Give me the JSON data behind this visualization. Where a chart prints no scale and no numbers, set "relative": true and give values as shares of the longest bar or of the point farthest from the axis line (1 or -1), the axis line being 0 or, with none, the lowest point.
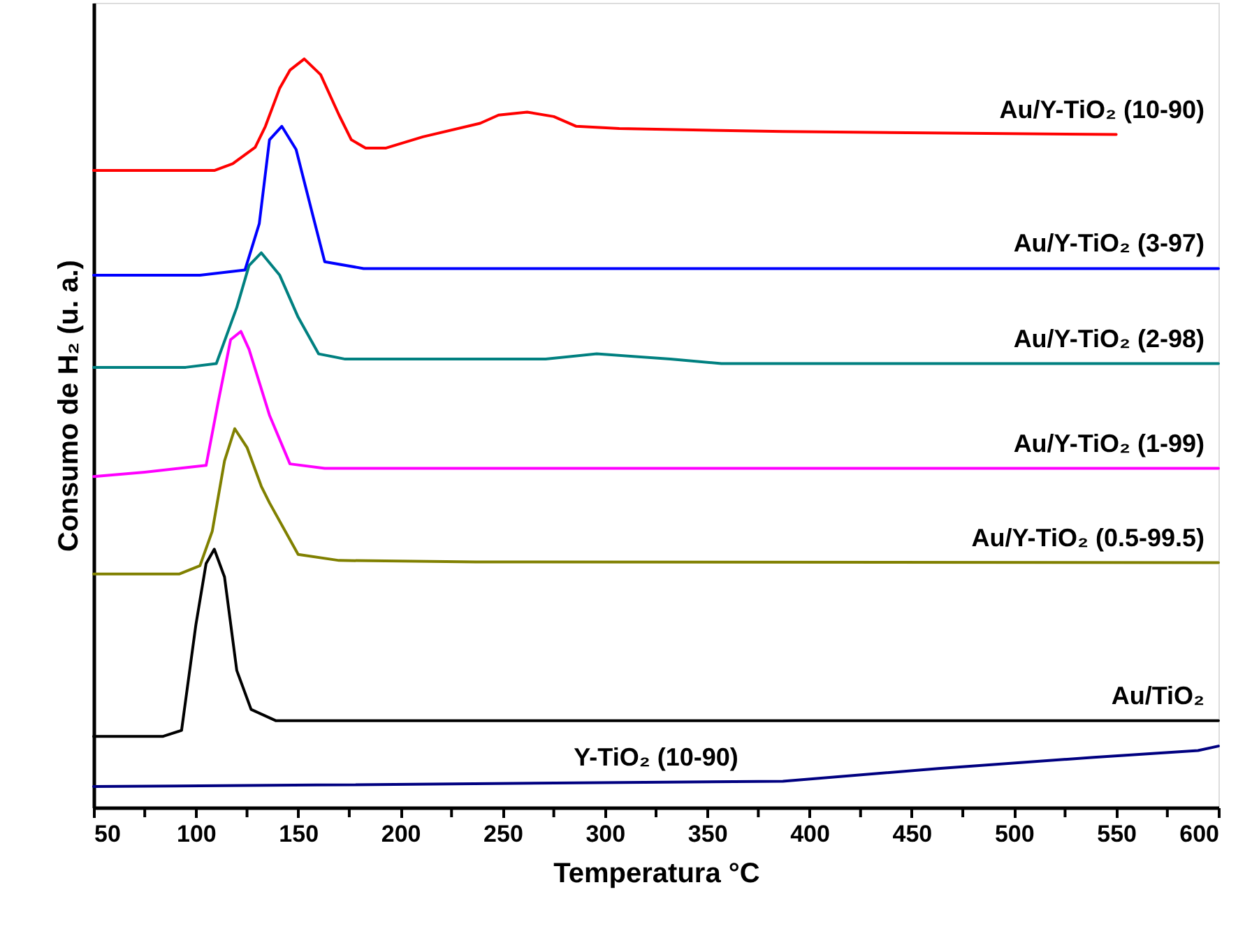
{
  "chart_data": {
    "type": "line",
    "relative": true,
    "xlabel": "Temperatura °C",
    "ylabel": "Consumo de H₂ (u. a.)",
    "xlim": [
      50,
      600
    ],
    "xticks": [
      50,
      {
        "value": 75,
        "label": null
      },
      100,
      {
        "value": 125,
        "label": null
      },
      150,
      {
        "value": 175,
        "label": null
      },
      200,
      {
        "value": 225,
        "label": null
      },
      250,
      {
        "value": 275,
        "label": null
      },
      300,
      {
        "value": 325,
        "label": null
      },
      350,
      {
        "value": 375,
        "label": null
      },
      400,
      {
        "value": 425,
        "label": null
      },
      450,
      {
        "value": 475,
        "label": null
      },
      500,
      {
        "value": 525,
        "label": null
      },
      550,
      {
        "value": 575,
        "label": null
      },
      600
    ],
    "tick_labels": "x",
    "grid": false,
    "legend": false,
    "series": [
      {
        "name": "Au/Y-TiO₂ (10-90)",
        "color": "#ff0000",
        "x": [
          50,
          109,
          118,
          129,
          134,
          141,
          146,
          153,
          161,
          170,
          176,
          183,
          193,
          211,
          239,
          248,
          262,
          275,
          286,
          307,
          387,
          550
        ],
        "values": [
          0.851,
          0.851,
          0.86,
          0.882,
          0.91,
          0.961,
          0.985,
          1.0,
          0.979,
          0.925,
          0.892,
          0.881,
          0.881,
          0.896,
          0.914,
          0.925,
          0.929,
          0.923,
          0.91,
          0.907,
          0.903,
          0.899
        ]
      },
      {
        "name": "Au/Y-TiO₂ (3-97)",
        "color": "#0000ff",
        "x": [
          50,
          102,
          124,
          131,
          136,
          142,
          149,
          157,
          163,
          182,
          600
        ],
        "values": [
          0.711,
          0.711,
          0.718,
          0.78,
          0.892,
          0.91,
          0.879,
          0.793,
          0.729,
          0.72,
          0.72
        ]
      },
      {
        "name": "Au/Y-TiO₂ (2-98)",
        "color": "#008080",
        "x": [
          50,
          95,
          110,
          120,
          126,
          132,
          141,
          150,
          160,
          173,
          271,
          296,
          332,
          357,
          600
        ],
        "values": [
          0.588,
          0.588,
          0.593,
          0.668,
          0.724,
          0.741,
          0.711,
          0.655,
          0.606,
          0.599,
          0.599,
          0.606,
          0.599,
          0.593,
          0.593
        ]
      },
      {
        "name": "Au/Y-TiO₂ (1-99)",
        "color": "#ff00ff",
        "x": [
          50,
          75,
          105,
          111,
          117,
          122,
          126,
          136,
          146,
          163,
          600
        ],
        "values": [
          0.442,
          0.448,
          0.457,
          0.543,
          0.625,
          0.636,
          0.612,
          0.524,
          0.459,
          0.453,
          0.453
        ]
      },
      {
        "name": "Au/Y-TiO₂ (0.5-99.5)",
        "color": "#808000",
        "x": [
          50,
          92,
          102,
          108,
          114,
          119,
          125,
          132,
          136,
          150,
          170,
          237,
          600
        ],
        "values": [
          0.312,
          0.312,
          0.323,
          0.369,
          0.463,
          0.506,
          0.481,
          0.429,
          0.407,
          0.338,
          0.33,
          0.328,
          0.327
        ]
      },
      {
        "name": "Au/TiO₂",
        "color": "#000000",
        "x": [
          50,
          84,
          93,
          100,
          105,
          109,
          114,
          120,
          127,
          139,
          600
        ],
        "values": [
          0.095,
          0.095,
          0.103,
          0.244,
          0.326,
          0.345,
          0.308,
          0.183,
          0.131,
          0.116,
          0.116
        ]
      },
      {
        "name": "Y-TiO₂ (10-90)",
        "color": "#000080",
        "x": [
          50,
          159,
          387,
          463,
          539,
          590,
          600
        ],
        "values": [
          0.028,
          0.03,
          0.035,
          0.052,
          0.067,
          0.076,
          0.082
        ]
      }
    ]
  }
}
